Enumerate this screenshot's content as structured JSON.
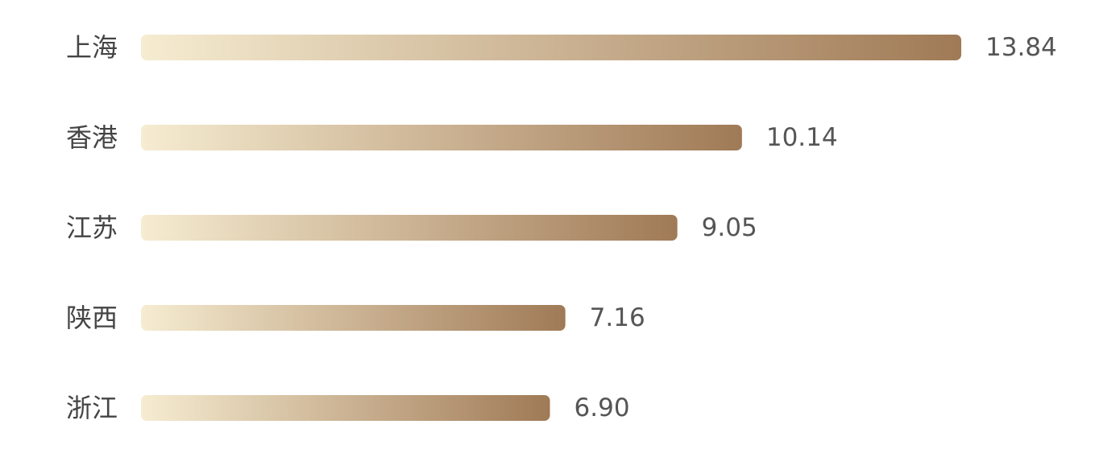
{
  "chart_data": {
    "type": "bar",
    "orientation": "horizontal",
    "categories": [
      "上海",
      "香港",
      "江苏",
      "陕西",
      "浙江"
    ],
    "values": [
      13.84,
      10.14,
      9.05,
      7.16,
      6.9
    ],
    "value_labels": [
      "13.84",
      "10.14",
      "9.05",
      "7.16",
      "6.90"
    ],
    "gradient": [
      "#f6ecd1",
      "#a07a56"
    ]
  }
}
